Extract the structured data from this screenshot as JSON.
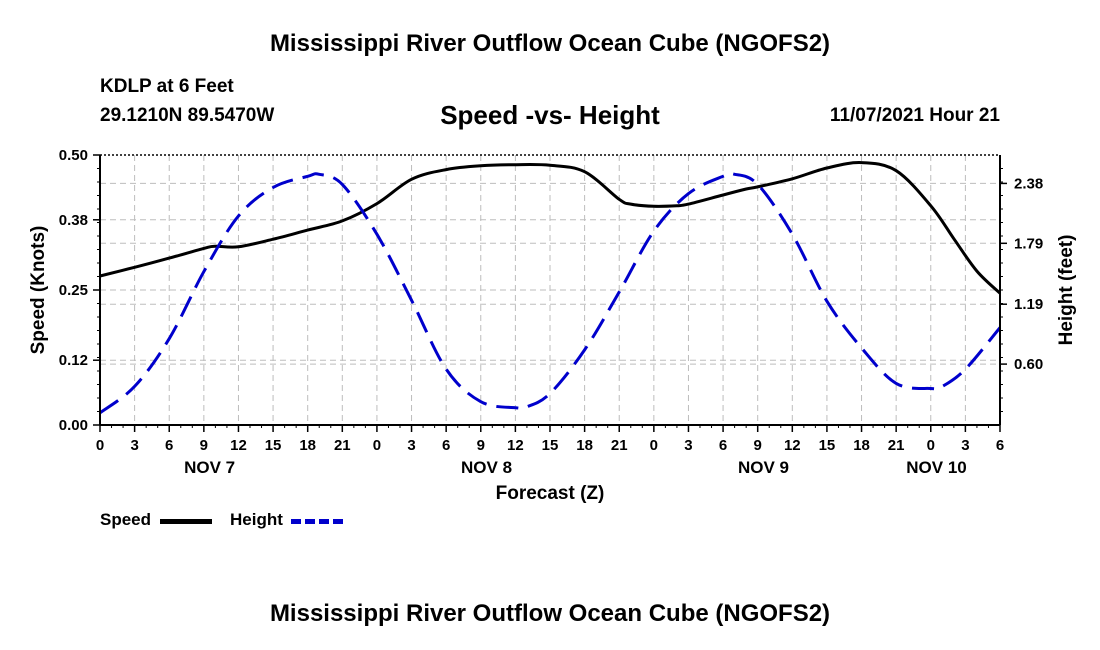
{
  "title": "Mississippi River Outflow Ocean Cube (NGOFS2)",
  "footer_title": "Mississippi River Outflow Ocean Cube (NGOFS2)",
  "station": "KDLP at 6 Feet",
  "coordinates": "29.1210N  89.5470W",
  "subtitle": "Speed -vs- Height",
  "datetime": "11/07/2021 Hour 21",
  "legend": {
    "speed_label": "Speed",
    "height_label": "Height",
    "speed_color": "#000000",
    "height_color": "#0000cc"
  },
  "chart_data": {
    "type": "line",
    "xlabel": "Forecast (Z)",
    "ylabel_left": "Speed (Knots)",
    "ylabel_right": "Height (feet)",
    "x_range_hours": [
      0,
      78
    ],
    "x_ticks_hours": [
      0,
      3,
      6,
      9,
      12,
      15,
      18,
      21,
      24,
      27,
      30,
      33,
      36,
      39,
      42,
      45,
      48,
      51,
      54,
      57,
      60,
      63,
      66,
      69,
      72,
      75,
      78
    ],
    "x_tick_labels": [
      "0",
      "3",
      "6",
      "9",
      "12",
      "15",
      "18",
      "21",
      "0",
      "3",
      "6",
      "9",
      "12",
      "15",
      "18",
      "21",
      "0",
      "3",
      "6",
      "9",
      "12",
      "15",
      "18",
      "21",
      "0",
      "3",
      "6"
    ],
    "date_labels": [
      {
        "hour": 9.5,
        "label": "NOV 7"
      },
      {
        "hour": 33.5,
        "label": "NOV 8"
      },
      {
        "hour": 57.5,
        "label": "NOV 9"
      },
      {
        "hour": 72.5,
        "label": "NOV 10"
      }
    ],
    "ylim_left": [
      0,
      0.5
    ],
    "y_ticks_left": [
      0.0,
      0.12,
      0.25,
      0.38,
      0.5
    ],
    "y_tick_labels_left": [
      "0.00",
      "0.12",
      "0.25",
      "0.38",
      "0.50"
    ],
    "ylim_right": [
      0,
      2.66
    ],
    "y_ticks_right": [
      0.6,
      1.19,
      1.79,
      2.38
    ],
    "y_tick_labels_right": [
      "0.60",
      "1.19",
      "1.79",
      "2.38"
    ],
    "grid": true,
    "series": [
      {
        "name": "Speed",
        "axis": "left",
        "color": "#000000",
        "style": "solid",
        "x": [
          0,
          3,
          6,
          9,
          10,
          12,
          15,
          18,
          21,
          24,
          27,
          30,
          33,
          36,
          39,
          42,
          45,
          46,
          48,
          50,
          51,
          54,
          56,
          57,
          60,
          63,
          66,
          69,
          72,
          74,
          76,
          78
        ],
        "y": [
          0.276,
          0.292,
          0.309,
          0.327,
          0.331,
          0.33,
          0.344,
          0.361,
          0.378,
          0.41,
          0.455,
          0.473,
          0.48,
          0.482,
          0.481,
          0.469,
          0.418,
          0.409,
          0.405,
          0.406,
          0.409,
          0.426,
          0.437,
          0.441,
          0.456,
          0.476,
          0.486,
          0.471,
          0.406,
          0.345,
          0.285,
          0.244
        ]
      },
      {
        "name": "Height",
        "axis": "right",
        "color": "#0000cc",
        "style": "dashed",
        "x": [
          0,
          3,
          6,
          9,
          12,
          15,
          18,
          19,
          21,
          24,
          27,
          30,
          33,
          36,
          37,
          39,
          42,
          45,
          48,
          51,
          54,
          55,
          57,
          60,
          63,
          66,
          69,
          72,
          73,
          75,
          78
        ],
        "y": [
          0.12,
          0.38,
          0.85,
          1.51,
          2.06,
          2.34,
          2.45,
          2.47,
          2.37,
          1.88,
          1.23,
          0.55,
          0.23,
          0.17,
          0.18,
          0.31,
          0.74,
          1.31,
          1.91,
          2.28,
          2.45,
          2.47,
          2.37,
          1.88,
          1.22,
          0.76,
          0.41,
          0.36,
          0.38,
          0.55,
          0.96
        ]
      }
    ]
  }
}
